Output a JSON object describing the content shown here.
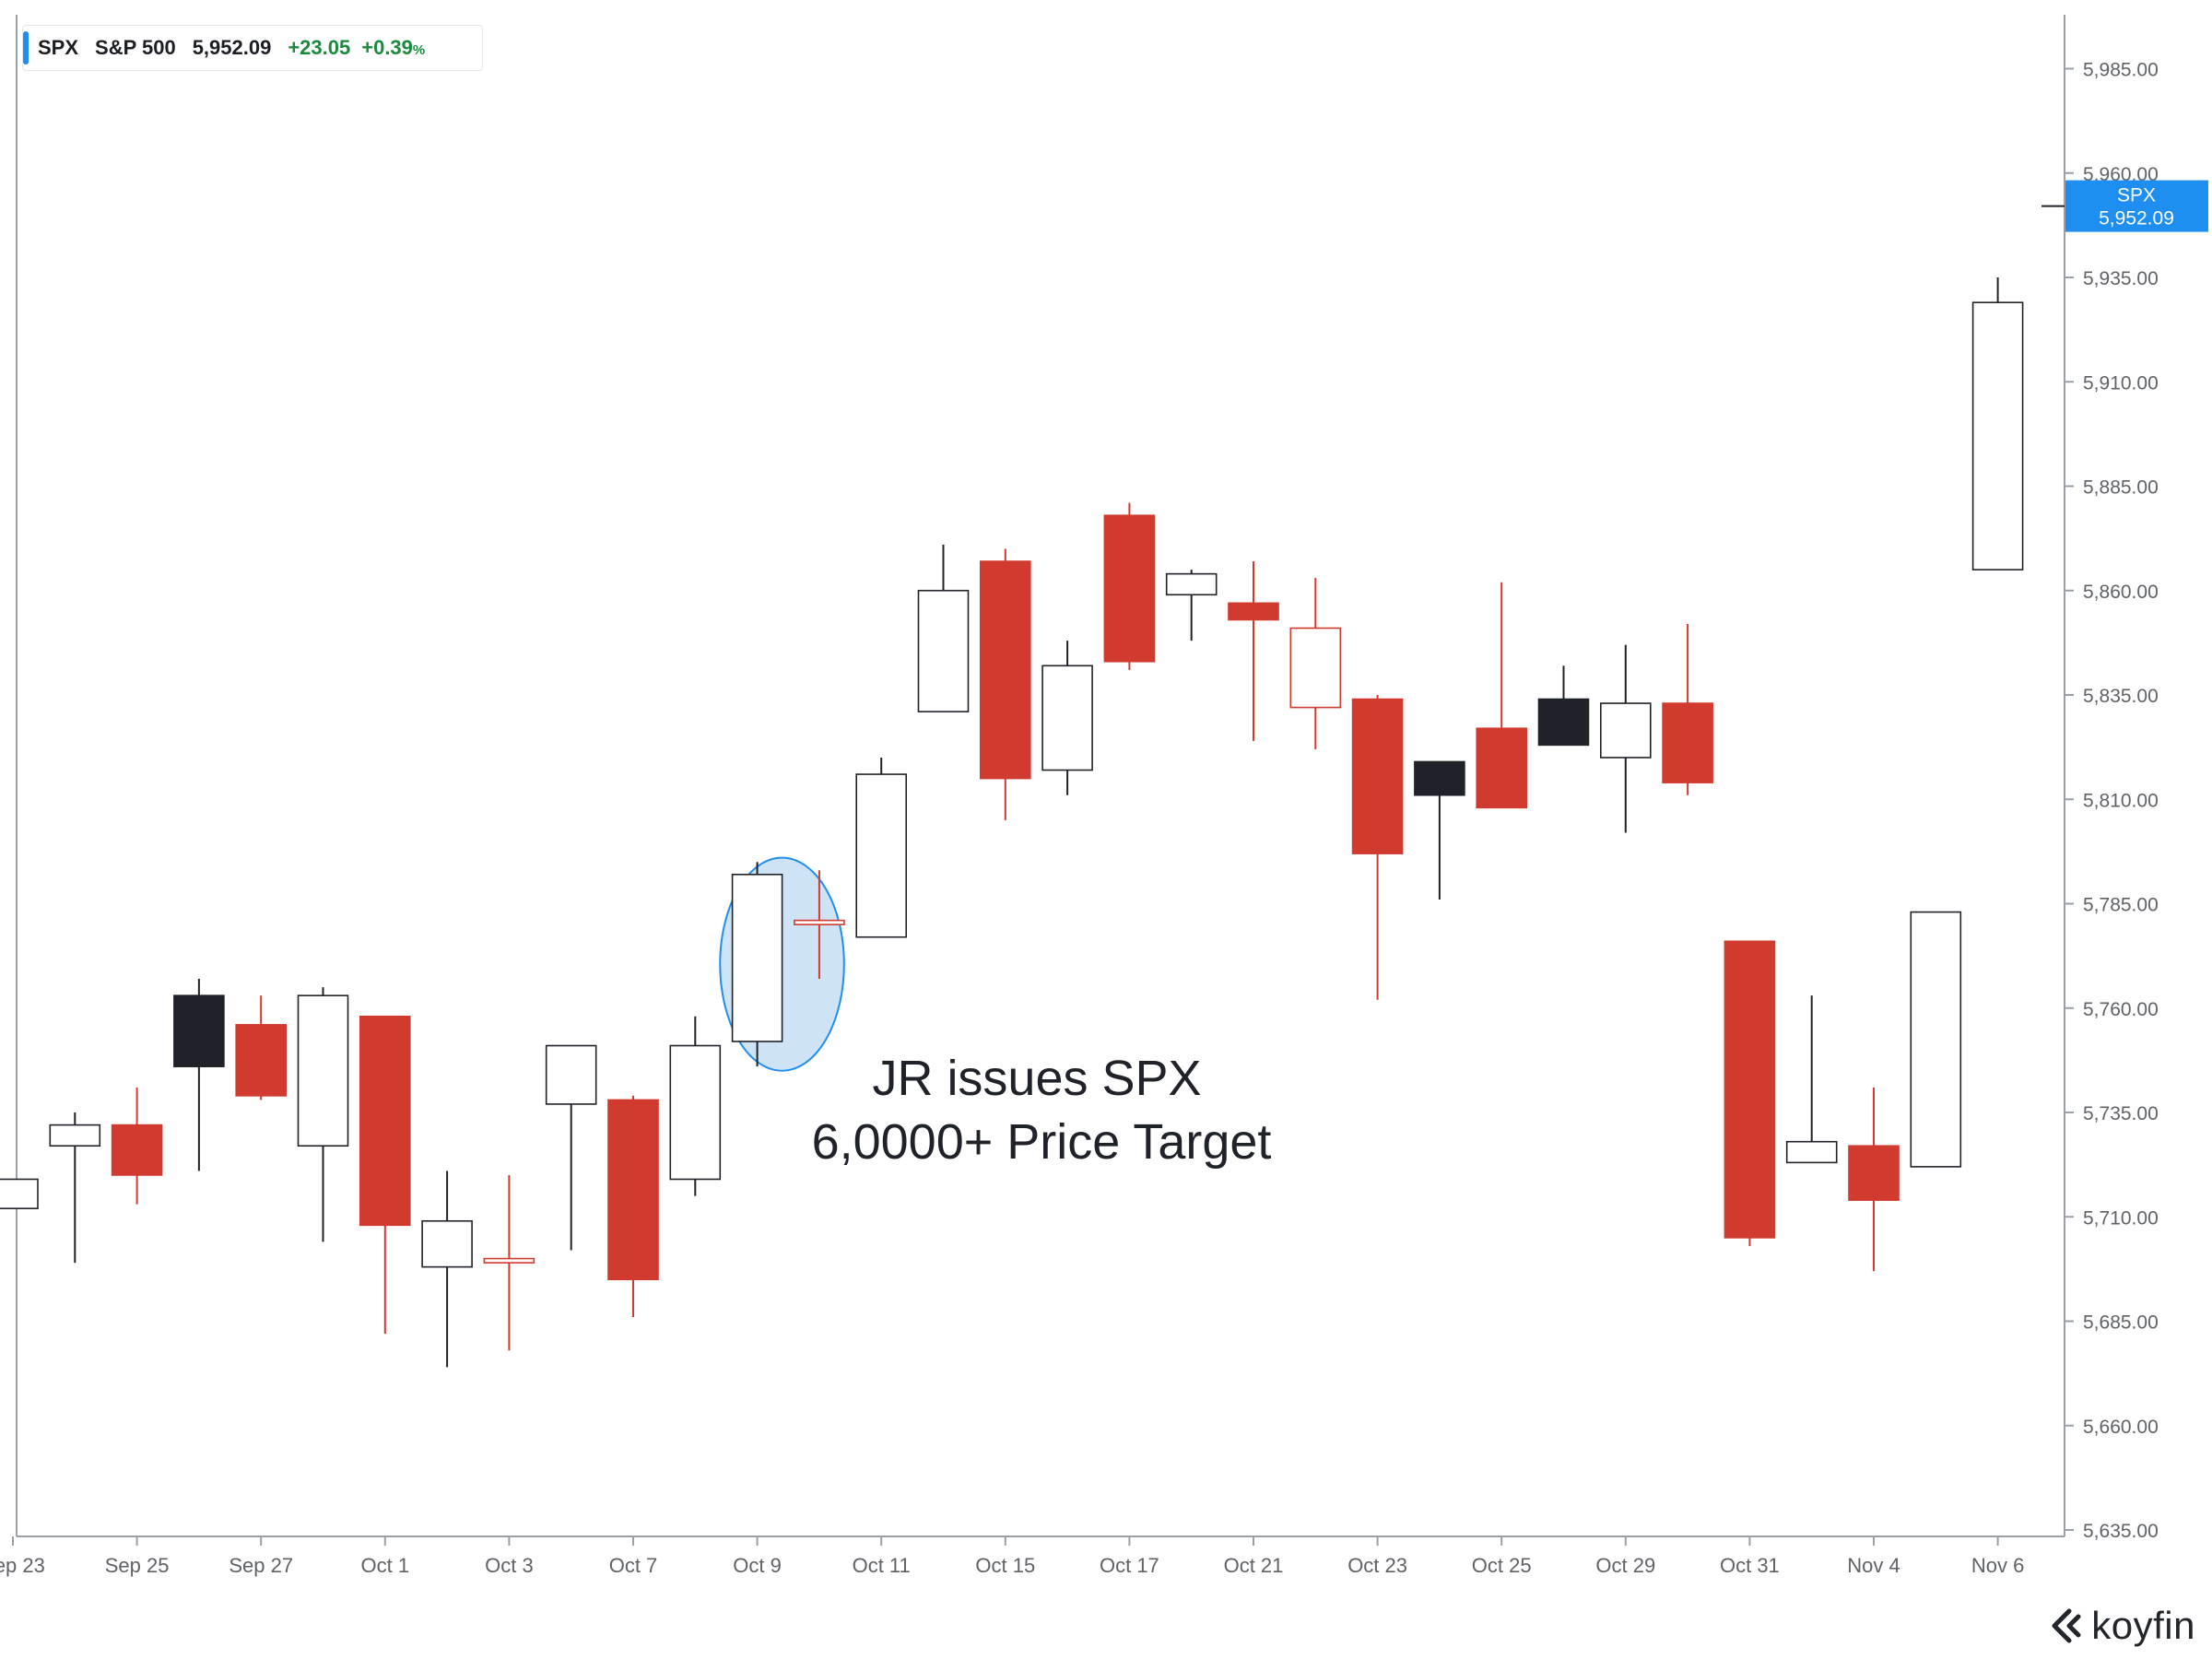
{
  "header": {
    "symbol": "SPX",
    "name": "S&P 500",
    "price": "5,952.09",
    "change": "+23.05",
    "change_pct": "+0.39",
    "pct_unit": "%"
  },
  "price_tag": {
    "symbol": "SPX",
    "value": "5,952.09"
  },
  "brand": {
    "name": "koyfin"
  },
  "colors": {
    "up": "#ffffff",
    "down": "#d13a2f",
    "dark": "#1f2329",
    "axis": "#9aa0a6",
    "accent": "#1f8ef1",
    "positive": "#1a8a3c"
  },
  "chart_data": {
    "type": "candlestick",
    "title": "",
    "xlabel": "",
    "ylabel": "",
    "ylim": [
      5635,
      5997
    ],
    "yticks": [
      "5,635.00",
      "5,660.00",
      "5,685.00",
      "5,710.00",
      "5,735.00",
      "5,760.00",
      "5,785.00",
      "5,810.00",
      "5,835.00",
      "5,860.00",
      "5,885.00",
      "5,910.00",
      "5,935.00",
      "5,960.00",
      "5,985.00"
    ],
    "ytick_values": [
      5635,
      5660,
      5685,
      5710,
      5735,
      5760,
      5785,
      5810,
      5835,
      5860,
      5885,
      5910,
      5935,
      5960,
      5985
    ],
    "xticks": [
      {
        "label": "Sep 23",
        "index": 0
      },
      {
        "label": "Sep 25",
        "index": 2
      },
      {
        "label": "Sep 27",
        "index": 4
      },
      {
        "label": "Oct 1",
        "index": 6
      },
      {
        "label": "Oct 3",
        "index": 8
      },
      {
        "label": "Oct 7",
        "index": 10
      },
      {
        "label": "Oct 9",
        "index": 12
      },
      {
        "label": "Oct 11",
        "index": 14
      },
      {
        "label": "Oct 15",
        "index": 16
      },
      {
        "label": "Oct 17",
        "index": 18
      },
      {
        "label": "Oct 21",
        "index": 20
      },
      {
        "label": "Oct 23",
        "index": 22
      },
      {
        "label": "Oct 25",
        "index": 24
      },
      {
        "label": "Oct 29",
        "index": 26
      },
      {
        "label": "Oct 31",
        "index": 28
      },
      {
        "label": "Nov 4",
        "index": 30
      },
      {
        "label": "Nov 6",
        "index": 32
      }
    ],
    "candles": [
      {
        "date": "Sep 23",
        "open": 5712,
        "high": 5719,
        "low": 5712,
        "close": 5719,
        "style": "up"
      },
      {
        "date": "Sep 24",
        "open": 5727,
        "high": 5735,
        "low": 5699,
        "close": 5732,
        "style": "up"
      },
      {
        "date": "Sep 25",
        "open": 5732,
        "high": 5741,
        "low": 5713,
        "close": 5720,
        "style": "down"
      },
      {
        "date": "Sep 26",
        "open": 5763,
        "high": 5767,
        "low": 5721,
        "close": 5746,
        "style": "dark"
      },
      {
        "date": "Sep 27",
        "open": 5756,
        "high": 5763,
        "low": 5738,
        "close": 5739,
        "style": "down"
      },
      {
        "date": "Sep 30",
        "open": 5727,
        "high": 5765,
        "low": 5704,
        "close": 5763,
        "style": "up"
      },
      {
        "date": "Oct 1",
        "open": 5758,
        "high": 5758,
        "low": 5682,
        "close": 5708,
        "style": "down"
      },
      {
        "date": "Oct 2",
        "open": 5698,
        "high": 5721,
        "low": 5674,
        "close": 5709,
        "style": "up"
      },
      {
        "date": "Oct 3",
        "open": 5699,
        "high": 5720,
        "low": 5678,
        "close": 5700,
        "style": "hollow-down"
      },
      {
        "date": "Oct 4",
        "open": 5737,
        "high": 5751,
        "low": 5702,
        "close": 5751,
        "style": "up"
      },
      {
        "date": "Oct 7",
        "open": 5738,
        "high": 5739,
        "low": 5686,
        "close": 5695,
        "style": "down"
      },
      {
        "date": "Oct 8",
        "open": 5719,
        "high": 5758,
        "low": 5715,
        "close": 5751,
        "style": "up"
      },
      {
        "date": "Oct 9",
        "open": 5752,
        "high": 5795,
        "low": 5746,
        "close": 5792,
        "style": "up"
      },
      {
        "date": "Oct 10",
        "open": 5780,
        "high": 5793,
        "low": 5767,
        "close": 5781,
        "style": "hollow-down"
      },
      {
        "date": "Oct 11",
        "open": 5777,
        "high": 5820,
        "low": 5777,
        "close": 5816,
        "style": "up"
      },
      {
        "date": "Oct 14",
        "open": 5831,
        "high": 5871,
        "low": 5831,
        "close": 5860,
        "style": "up"
      },
      {
        "date": "Oct 15",
        "open": 5867,
        "high": 5870,
        "low": 5805,
        "close": 5815,
        "style": "down"
      },
      {
        "date": "Oct 16",
        "open": 5817,
        "high": 5848,
        "low": 5811,
        "close": 5842,
        "style": "up"
      },
      {
        "date": "Oct 17",
        "open": 5878,
        "high": 5881,
        "low": 5841,
        "close": 5843,
        "style": "down"
      },
      {
        "date": "Oct 18",
        "open": 5859,
        "high": 5865,
        "low": 5848,
        "close": 5864,
        "style": "up"
      },
      {
        "date": "Oct 21",
        "open": 5857,
        "high": 5867,
        "low": 5824,
        "close": 5853,
        "style": "down"
      },
      {
        "date": "Oct 22",
        "open": 5832,
        "high": 5863,
        "low": 5822,
        "close": 5851,
        "style": "hollow-down"
      },
      {
        "date": "Oct 23",
        "open": 5834,
        "high": 5835,
        "low": 5762,
        "close": 5797,
        "style": "down"
      },
      {
        "date": "Oct 24",
        "open": 5819,
        "high": 5819,
        "low": 5786,
        "close": 5811,
        "style": "dark"
      },
      {
        "date": "Oct 25",
        "open": 5827,
        "high": 5862,
        "low": 5808,
        "close": 5808,
        "style": "down"
      },
      {
        "date": "Oct 28",
        "open": 5823,
        "high": 5842,
        "low": 5823,
        "close": 5834,
        "style": "dark"
      },
      {
        "date": "Oct 29",
        "open": 5820,
        "high": 5847,
        "low": 5802,
        "close": 5833,
        "style": "up"
      },
      {
        "date": "Oct 30",
        "open": 5833,
        "high": 5852,
        "low": 5811,
        "close": 5814,
        "style": "down"
      },
      {
        "date": "Oct 31",
        "open": 5776,
        "high": 5776,
        "low": 5703,
        "close": 5705,
        "style": "down"
      },
      {
        "date": "Nov 1",
        "open": 5723,
        "high": 5763,
        "low": 5723,
        "close": 5728,
        "style": "up"
      },
      {
        "date": "Nov 4",
        "open": 5727,
        "high": 5741,
        "low": 5697,
        "close": 5714,
        "style": "down"
      },
      {
        "date": "Nov 5",
        "open": 5722,
        "high": 5783,
        "low": 5722,
        "close": 5783,
        "style": "up"
      },
      {
        "date": "Nov 6",
        "open": 5865,
        "high": 5935,
        "low": 5865,
        "close": 5929,
        "style": "up"
      }
    ],
    "last_price": 5952.09,
    "annotation": {
      "lines": [
        "JR issues SPX",
        "6,0000+ Price Target"
      ],
      "highlight": {
        "from_index": 11.4,
        "to_index": 13.4,
        "low": 5745,
        "high": 5796
      }
    }
  }
}
